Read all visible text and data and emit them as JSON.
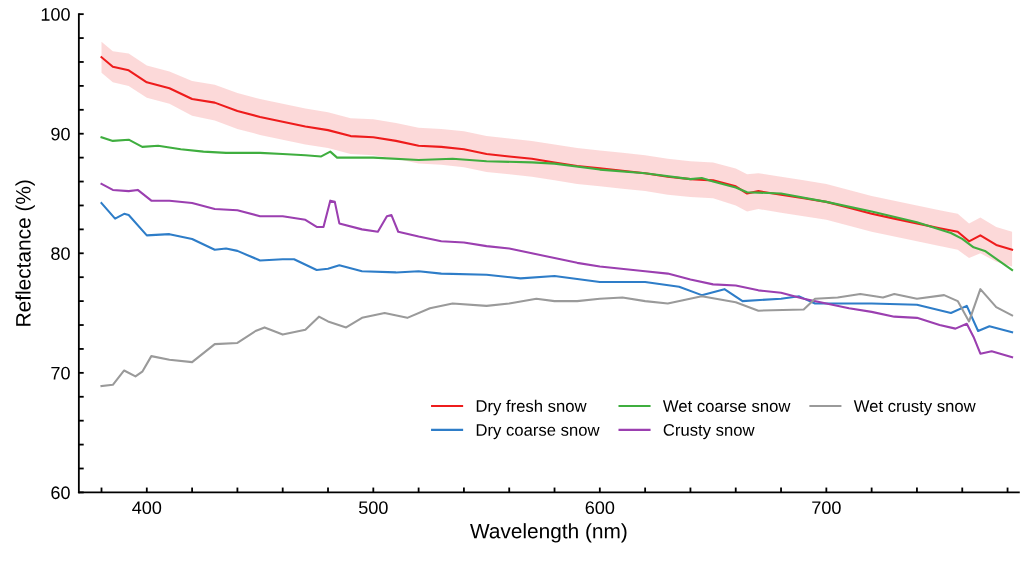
{
  "chart_data": {
    "type": "line",
    "xlabel": "Wavelength (nm)",
    "ylabel": "Reflectance (%)",
    "xlim": [
      370,
      785
    ],
    "ylim": [
      60,
      100
    ],
    "xticks": [
      {
        "value": 380,
        "label": null
      },
      400,
      {
        "value": 420,
        "label": null
      },
      {
        "value": 440,
        "label": null
      },
      {
        "value": 460,
        "label": null
      },
      {
        "value": 480,
        "label": null
      },
      500,
      {
        "value": 520,
        "label": null
      },
      {
        "value": 540,
        "label": null
      },
      {
        "value": 560,
        "label": null
      },
      {
        "value": 580,
        "label": null
      },
      600,
      {
        "value": 620,
        "label": null
      },
      {
        "value": 640,
        "label": null
      },
      {
        "value": 660,
        "label": null
      },
      {
        "value": 680,
        "label": null
      },
      700,
      {
        "value": 720,
        "label": null
      },
      {
        "value": 740,
        "label": null
      },
      {
        "value": 760,
        "label": null
      },
      {
        "value": 780,
        "label": null
      }
    ],
    "yticks": [
      60,
      {
        "value": 62,
        "label": null
      },
      {
        "value": 64,
        "label": null
      },
      {
        "value": 66,
        "label": null
      },
      {
        "value": 68,
        "label": null
      },
      70,
      {
        "value": 72,
        "label": null
      },
      {
        "value": 74,
        "label": null
      },
      {
        "value": 76,
        "label": null
      },
      {
        "value": 78,
        "label": null
      },
      80,
      {
        "value": 82,
        "label": null
      },
      {
        "value": 84,
        "label": null
      },
      {
        "value": 86,
        "label": null
      },
      {
        "value": 88,
        "label": null
      },
      90,
      {
        "value": 92,
        "label": null
      },
      {
        "value": 94,
        "label": null
      },
      {
        "value": 96,
        "label": null
      },
      {
        "value": 98,
        "label": null
      },
      100
    ],
    "grid": false,
    "legend": "bottom right",
    "marker": "none",
    "line_style": "solid",
    "series": [
      {
        "name": "Dry fresh snow",
        "color": "#ee1c1c",
        "x": [
          380,
          385,
          392,
          400,
          410,
          420,
          430,
          440,
          450,
          460,
          470,
          480,
          490,
          500,
          510,
          520,
          530,
          540,
          550,
          560,
          570,
          580,
          590,
          600,
          610,
          620,
          630,
          640,
          650,
          660,
          665,
          670,
          680,
          690,
          700,
          710,
          720,
          730,
          740,
          750,
          758,
          763,
          768,
          775,
          782
        ],
        "values": [
          96.4,
          95.6,
          95.3,
          94.3,
          93.8,
          92.9,
          92.6,
          91.9,
          91.4,
          91.0,
          90.6,
          90.3,
          89.8,
          89.7,
          89.4,
          89.0,
          88.9,
          88.7,
          88.3,
          88.1,
          87.9,
          87.6,
          87.3,
          87.1,
          86.9,
          86.7,
          86.4,
          86.2,
          86.1,
          85.6,
          85.0,
          85.2,
          84.9,
          84.6,
          84.3,
          83.8,
          83.3,
          82.9,
          82.5,
          82.1,
          81.8,
          81.0,
          81.5,
          80.7,
          80.3
        ],
        "lower": [
          95.1,
          94.3,
          94.0,
          93.0,
          92.5,
          91.5,
          91.1,
          90.4,
          89.9,
          89.5,
          89.1,
          88.8,
          88.3,
          88.2,
          87.9,
          87.5,
          87.4,
          87.2,
          86.8,
          86.6,
          86.4,
          86.1,
          85.8,
          85.6,
          85.4,
          85.2,
          84.9,
          84.7,
          84.6,
          84.0,
          83.5,
          83.7,
          83.4,
          83.1,
          82.8,
          82.3,
          81.8,
          81.4,
          81.0,
          80.6,
          80.3,
          79.6,
          80.0,
          79.3,
          78.9
        ],
        "upper": [
          97.7,
          96.9,
          96.7,
          95.7,
          95.2,
          94.4,
          94.1,
          93.4,
          92.9,
          92.5,
          92.1,
          91.8,
          91.3,
          91.2,
          90.9,
          90.5,
          90.4,
          90.2,
          89.8,
          89.6,
          89.4,
          89.1,
          88.8,
          88.6,
          88.4,
          88.2,
          87.9,
          87.7,
          87.6,
          87.1,
          86.6,
          86.7,
          86.4,
          86.1,
          85.8,
          85.3,
          84.8,
          84.4,
          84.0,
          83.6,
          83.3,
          82.5,
          83.0,
          82.2,
          81.8
        ]
      },
      {
        "name": "Dry coarse snow",
        "color": "#2e7dc8",
        "x": [
          380,
          386,
          390,
          392,
          400,
          410,
          420,
          430,
          435,
          440,
          450,
          460,
          465,
          475,
          480,
          485,
          495,
          510,
          520,
          530,
          550,
          565,
          580,
          600,
          620,
          635,
          645,
          655,
          663,
          680,
          688,
          695,
          720,
          740,
          755,
          762,
          767,
          772,
          782
        ],
        "values": [
          84.2,
          82.9,
          83.3,
          83.2,
          81.5,
          81.6,
          81.2,
          80.3,
          80.4,
          80.2,
          79.4,
          79.5,
          79.5,
          78.6,
          78.7,
          79.0,
          78.5,
          78.4,
          78.5,
          78.3,
          78.2,
          77.9,
          78.1,
          77.6,
          77.6,
          77.2,
          76.5,
          77.0,
          76.0,
          76.2,
          76.4,
          75.8,
          75.8,
          75.7,
          75.0,
          75.6,
          73.5,
          73.9,
          73.4
        ]
      },
      {
        "name": "Wet coarse snow",
        "color": "#3fae3f",
        "x": [
          380,
          385,
          392,
          398,
          405,
          415,
          425,
          435,
          450,
          460,
          470,
          477,
          481,
          484,
          500,
          520,
          535,
          550,
          570,
          580,
          600,
          620,
          640,
          645,
          650,
          660,
          665,
          680,
          700,
          720,
          740,
          755,
          760,
          765,
          770,
          782
        ],
        "values": [
          89.7,
          89.4,
          89.5,
          88.9,
          89.0,
          88.7,
          88.5,
          88.4,
          88.4,
          88.3,
          88.2,
          88.1,
          88.5,
          88.0,
          88.0,
          87.8,
          87.9,
          87.7,
          87.6,
          87.5,
          87.0,
          86.7,
          86.2,
          86.3,
          86.0,
          85.5,
          85.1,
          85.0,
          84.3,
          83.5,
          82.6,
          81.7,
          81.2,
          80.5,
          80.2,
          78.6
        ]
      },
      {
        "name": "Crusty snow",
        "color": "#9b3fb0",
        "x": [
          380,
          385,
          392,
          396,
          402,
          410,
          420,
          430,
          440,
          450,
          460,
          470,
          475,
          478,
          481,
          483,
          485,
          495,
          502,
          506,
          508,
          511,
          520,
          530,
          540,
          550,
          560,
          570,
          580,
          590,
          600,
          620,
          630,
          640,
          650,
          660,
          670,
          680,
          690,
          700,
          710,
          720,
          730,
          740,
          750,
          757,
          762,
          765,
          768,
          773,
          782
        ],
        "values": [
          85.8,
          85.3,
          85.2,
          85.3,
          84.4,
          84.4,
          84.2,
          83.7,
          83.6,
          83.1,
          83.1,
          82.8,
          82.2,
          82.2,
          84.4,
          84.3,
          82.5,
          82.0,
          81.8,
          83.1,
          83.2,
          81.8,
          81.4,
          81.0,
          80.9,
          80.6,
          80.4,
          80.0,
          79.6,
          79.2,
          78.9,
          78.5,
          78.3,
          77.8,
          77.4,
          77.3,
          76.9,
          76.7,
          76.2,
          75.8,
          75.4,
          75.1,
          74.7,
          74.6,
          74.0,
          73.7,
          74.1,
          73.0,
          71.6,
          71.8,
          71.3
        ]
      },
      {
        "name": "Wet crusty snow",
        "color": "#9a9a9a",
        "x": [
          380,
          385,
          390,
          395,
          398,
          402,
          410,
          420,
          430,
          440,
          448,
          452,
          460,
          470,
          476,
          480,
          488,
          495,
          505,
          515,
          525,
          535,
          550,
          560,
          572,
          580,
          590,
          600,
          610,
          620,
          630,
          645,
          660,
          670,
          690,
          695,
          705,
          715,
          725,
          730,
          740,
          752,
          758,
          763,
          768,
          775,
          782
        ],
        "values": [
          68.9,
          69.0,
          70.2,
          69.7,
          70.1,
          71.4,
          71.1,
          70.9,
          72.4,
          72.5,
          73.5,
          73.8,
          73.2,
          73.6,
          74.7,
          74.3,
          73.8,
          74.6,
          75.0,
          74.6,
          75.4,
          75.8,
          75.6,
          75.8,
          76.2,
          76.0,
          76.0,
          76.2,
          76.3,
          76.0,
          75.8,
          76.4,
          75.9,
          75.2,
          75.3,
          76.2,
          76.3,
          76.6,
          76.3,
          76.6,
          76.2,
          76.5,
          76.0,
          74.3,
          77.0,
          75.5,
          74.8
        ]
      }
    ]
  }
}
